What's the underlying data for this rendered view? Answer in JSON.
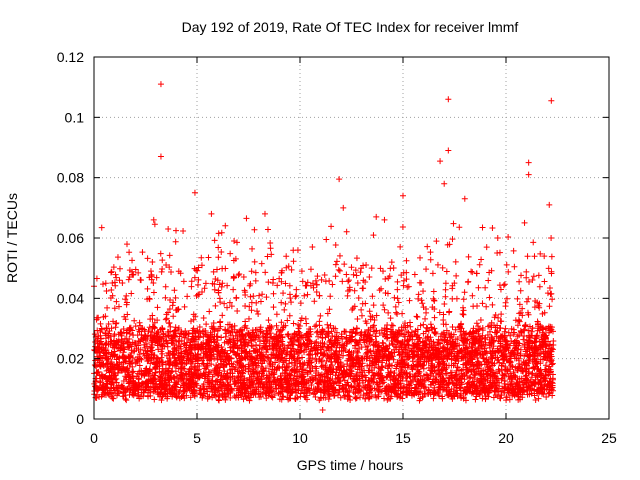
{
  "chart_data": {
    "type": "scatter",
    "title": "Day 192 of 2019, Rate Of TEC Index for receiver lmmf",
    "xlabel": "GPS time / hours",
    "ylabel": "ROTI / TECUs",
    "xlim": [
      0,
      25
    ],
    "ylim": [
      0,
      0.12
    ],
    "xticks": [
      "0",
      "5",
      "10",
      "15",
      "20",
      "25"
    ],
    "yticks": [
      "0",
      "0.02",
      "0.04",
      "0.06",
      "0.08",
      "0.1",
      "0.12"
    ],
    "grid": true,
    "marker": "+",
    "color": "#ff0000",
    "x_data_range": [
      0,
      22.3
    ],
    "typical_band": [
      0.008,
      0.03
    ],
    "outliers": [
      {
        "x": 3.25,
        "y": 0.111
      },
      {
        "x": 3.25,
        "y": 0.087
      },
      {
        "x": 17.2,
        "y": 0.106
      },
      {
        "x": 17.2,
        "y": 0.089
      },
      {
        "x": 16.8,
        "y": 0.0855
      },
      {
        "x": 22.2,
        "y": 0.1055
      },
      {
        "x": 21.1,
        "y": 0.085
      },
      {
        "x": 21.1,
        "y": 0.081
      },
      {
        "x": 11.9,
        "y": 0.0795
      },
      {
        "x": 4.9,
        "y": 0.075
      },
      {
        "x": 17.0,
        "y": 0.078
      },
      {
        "x": 7.4,
        "y": 0.0665
      },
      {
        "x": 8.3,
        "y": 0.068
      },
      {
        "x": 15.0,
        "y": 0.074
      },
      {
        "x": 13.7,
        "y": 0.067
      },
      {
        "x": 18.0,
        "y": 0.073
      },
      {
        "x": 22.1,
        "y": 0.071
      },
      {
        "x": 2.9,
        "y": 0.066
      },
      {
        "x": 5.7,
        "y": 0.068
      },
      {
        "x": 12.1,
        "y": 0.07
      },
      {
        "x": 10.6,
        "y": 0.057
      },
      {
        "x": 20.9,
        "y": 0.065
      },
      {
        "x": 14.1,
        "y": 0.066
      },
      {
        "x": 3.6,
        "y": 0.063
      },
      {
        "x": 19.6,
        "y": 0.06
      },
      {
        "x": 6.8,
        "y": 0.059
      },
      {
        "x": 9.9,
        "y": 0.056
      },
      {
        "x": 22.2,
        "y": 0.0415
      },
      {
        "x": 11.1,
        "y": 0.003
      },
      {
        "x": 0.0,
        "y": 0.044
      }
    ]
  }
}
